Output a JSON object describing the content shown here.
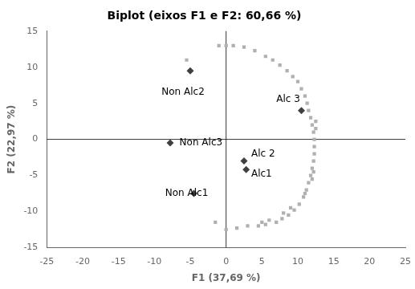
{
  "chart_data": {
    "type": "scatter",
    "title": "Biplot (eixos F1 e F2: 60,66 %)",
    "xlabel": "F1 (37,69 %)",
    "ylabel": "F2 (22,97 %)",
    "xlim": [
      -25,
      25
    ],
    "ylim": [
      -15,
      15
    ],
    "xticks": [
      -25,
      -20,
      -15,
      -10,
      -5,
      0,
      5,
      10,
      15,
      20,
      25
    ],
    "yticks": [
      -15,
      -10,
      -5,
      0,
      5,
      10,
      15
    ],
    "grid": false,
    "hlines": [
      0
    ],
    "vlines": [
      0
    ],
    "series": [
      {
        "color": "#b0b0b0",
        "marker": "square",
        "x": [
          -5.5,
          -1.0,
          0.0,
          1.0,
          2.5,
          4.0,
          5.5,
          6.5,
          7.5,
          8.5,
          9.3,
          10.0,
          10.5,
          11.0,
          11.3,
          11.5,
          11.8,
          12.0,
          12.2,
          12.3,
          12.3,
          12.3,
          12.2,
          12.0,
          11.8,
          11.5,
          11.2,
          10.8,
          10.2,
          9.5,
          8.7,
          7.8,
          7.0,
          5.5,
          4.5,
          3.0,
          1.5,
          0.0,
          -1.5,
          5.0,
          6.0,
          8.0,
          9.0,
          11.0,
          12.0,
          12.2,
          12.5,
          12.5
        ],
        "values": [
          11.0,
          13.0,
          13.0,
          13.0,
          12.8,
          12.3,
          11.5,
          11.0,
          10.3,
          9.5,
          8.7,
          8.0,
          7.0,
          6.0,
          5.0,
          4.0,
          3.0,
          2.0,
          1.0,
          0.0,
          -1.0,
          -2.0,
          -3.0,
          -4.0,
          -5.0,
          -6.0,
          -7.0,
          -8.0,
          -9.0,
          -9.8,
          -10.5,
          -11.0,
          -11.5,
          -11.8,
          -12.0,
          -12.0,
          -12.3,
          -12.5,
          -11.5,
          -11.5,
          -11.2,
          -10.2,
          -9.5,
          -7.5,
          -5.5,
          -4.5,
          1.5,
          2.5
        ]
      },
      {
        "color": "#404040",
        "marker": "diamond",
        "x": [
          -5.0,
          -7.8,
          -4.5,
          10.5,
          2.5,
          2.8
        ],
        "values": [
          9.5,
          -0.5,
          -7.5,
          4.0,
          -3.0,
          -4.2
        ]
      }
    ],
    "annotations": [
      {
        "text": "Non Alc2",
        "x": -9.0,
        "y": 6.5
      },
      {
        "text": "Non Alc3",
        "x": -6.5,
        "y": -0.5
      },
      {
        "text": "Non Alc1",
        "x": -8.5,
        "y": -7.5
      },
      {
        "text": "Alc 3",
        "x": 7.0,
        "y": 5.5
      },
      {
        "text": "Alc 2",
        "x": 3.5,
        "y": -2.0
      },
      {
        "text": "Alc1",
        "x": 3.5,
        "y": -4.8
      }
    ]
  }
}
